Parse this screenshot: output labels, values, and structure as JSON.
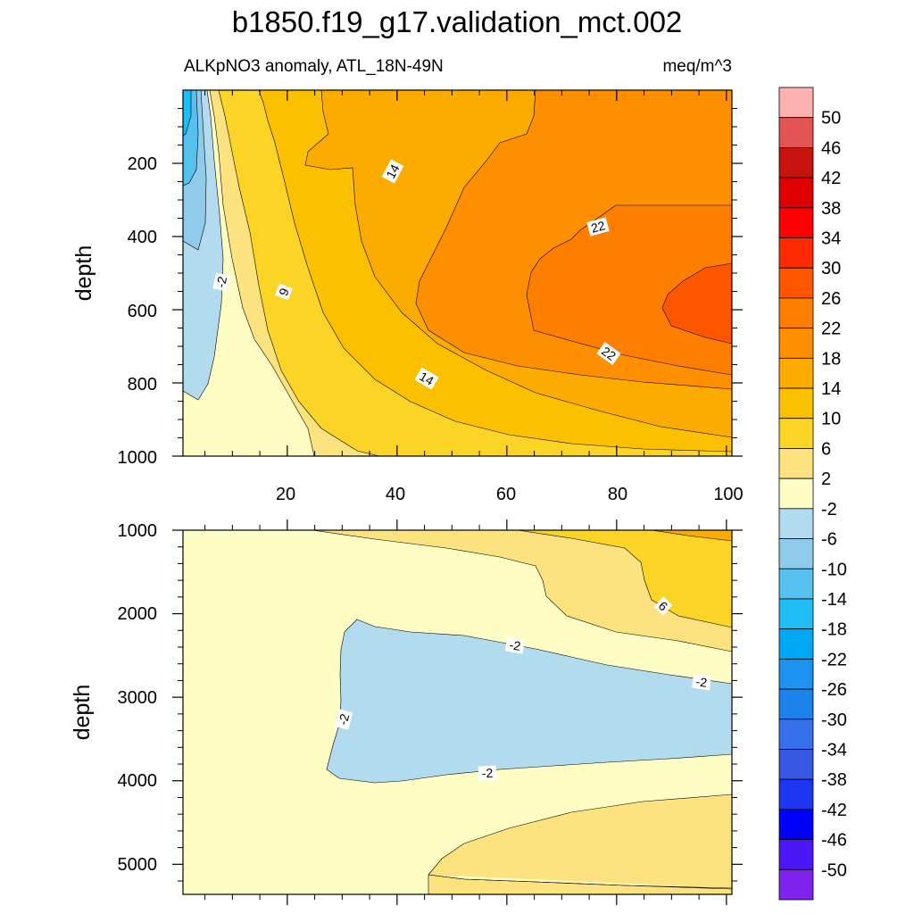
{
  "title": "b1850.f19_g17.validation_mct.002",
  "panel_top": {
    "left_label": "ALKpNO3 anomaly, ATL_18N-49N",
    "right_label": "meq/m^3",
    "ylabel": "depth",
    "x_ticks": [
      "20",
      "40",
      "60",
      "80",
      "100"
    ],
    "y_ticks": [
      "200",
      "400",
      "600",
      "800",
      "1000"
    ]
  },
  "panel_bottom": {
    "ylabel": "depth",
    "y_ticks": [
      "1000",
      "2000",
      "3000",
      "4000",
      "5000"
    ]
  },
  "colorbar": {
    "labels": [
      "50",
      "46",
      "42",
      "38",
      "34",
      "30",
      "26",
      "22",
      "18",
      "14",
      "10",
      "6",
      "2",
      "-2",
      "-6",
      "-10",
      "-14",
      "-18",
      "-22",
      "-26",
      "-30",
      "-34",
      "-38",
      "-42",
      "-46",
      "-50"
    ],
    "colors": [
      "#fdb1b1",
      "#e35351",
      "#c8130f",
      "#de0000",
      "#fe0000",
      "#fe2a00",
      "#fe5600",
      "#fe7f00",
      "#fe8f00",
      "#fcac00",
      "#fbc100",
      "#fcd426",
      "#fde37f",
      "#fefec4",
      "#b2dbf0",
      "#8fcbea",
      "#56c0ee",
      "#1ebdf6",
      "#00a8f4",
      "#1c94ef",
      "#1c83ec",
      "#3570ea",
      "#3658e2",
      "#1c36f2",
      "#0000fa",
      "#4b17f6",
      "#8021ed"
    ]
  },
  "chart_data": [
    {
      "type": "heatmap",
      "subtype": "filled-contour",
      "title": "b1850.f19_g17.validation_mct.002",
      "left_label": "ALKpNO3 anomaly, ATL_18N-49N",
      "units": "meq/m^3",
      "xlabel": "",
      "ylabel": "depth",
      "xlim": [
        1,
        101
      ],
      "ylim": [
        1000,
        0
      ],
      "x_ticks": [
        20,
        40,
        60,
        80,
        100
      ],
      "y_ticks": [
        200,
        400,
        600,
        800,
        1000
      ],
      "contour_levels": [
        -50,
        -46,
        -42,
        -38,
        -34,
        -30,
        -26,
        -22,
        -18,
        -14,
        -10,
        -6,
        -2,
        2,
        6,
        10,
        14,
        18,
        22,
        26,
        30,
        34,
        38,
        42,
        46,
        50
      ],
      "contour_labels": [
        -2,
        9,
        14,
        14,
        22,
        22
      ],
      "value_range_est": [
        -16,
        28
      ]
    },
    {
      "type": "heatmap",
      "subtype": "filled-contour",
      "xlabel": "",
      "ylabel": "depth",
      "xlim": [
        1,
        101
      ],
      "ylim": [
        5400,
        1000
      ],
      "y_ticks": [
        1000,
        2000,
        3000,
        4000,
        5000
      ],
      "contour_labels": [
        6,
        -2,
        -2,
        -2,
        -2
      ],
      "value_range_est": [
        -5,
        12
      ]
    }
  ]
}
